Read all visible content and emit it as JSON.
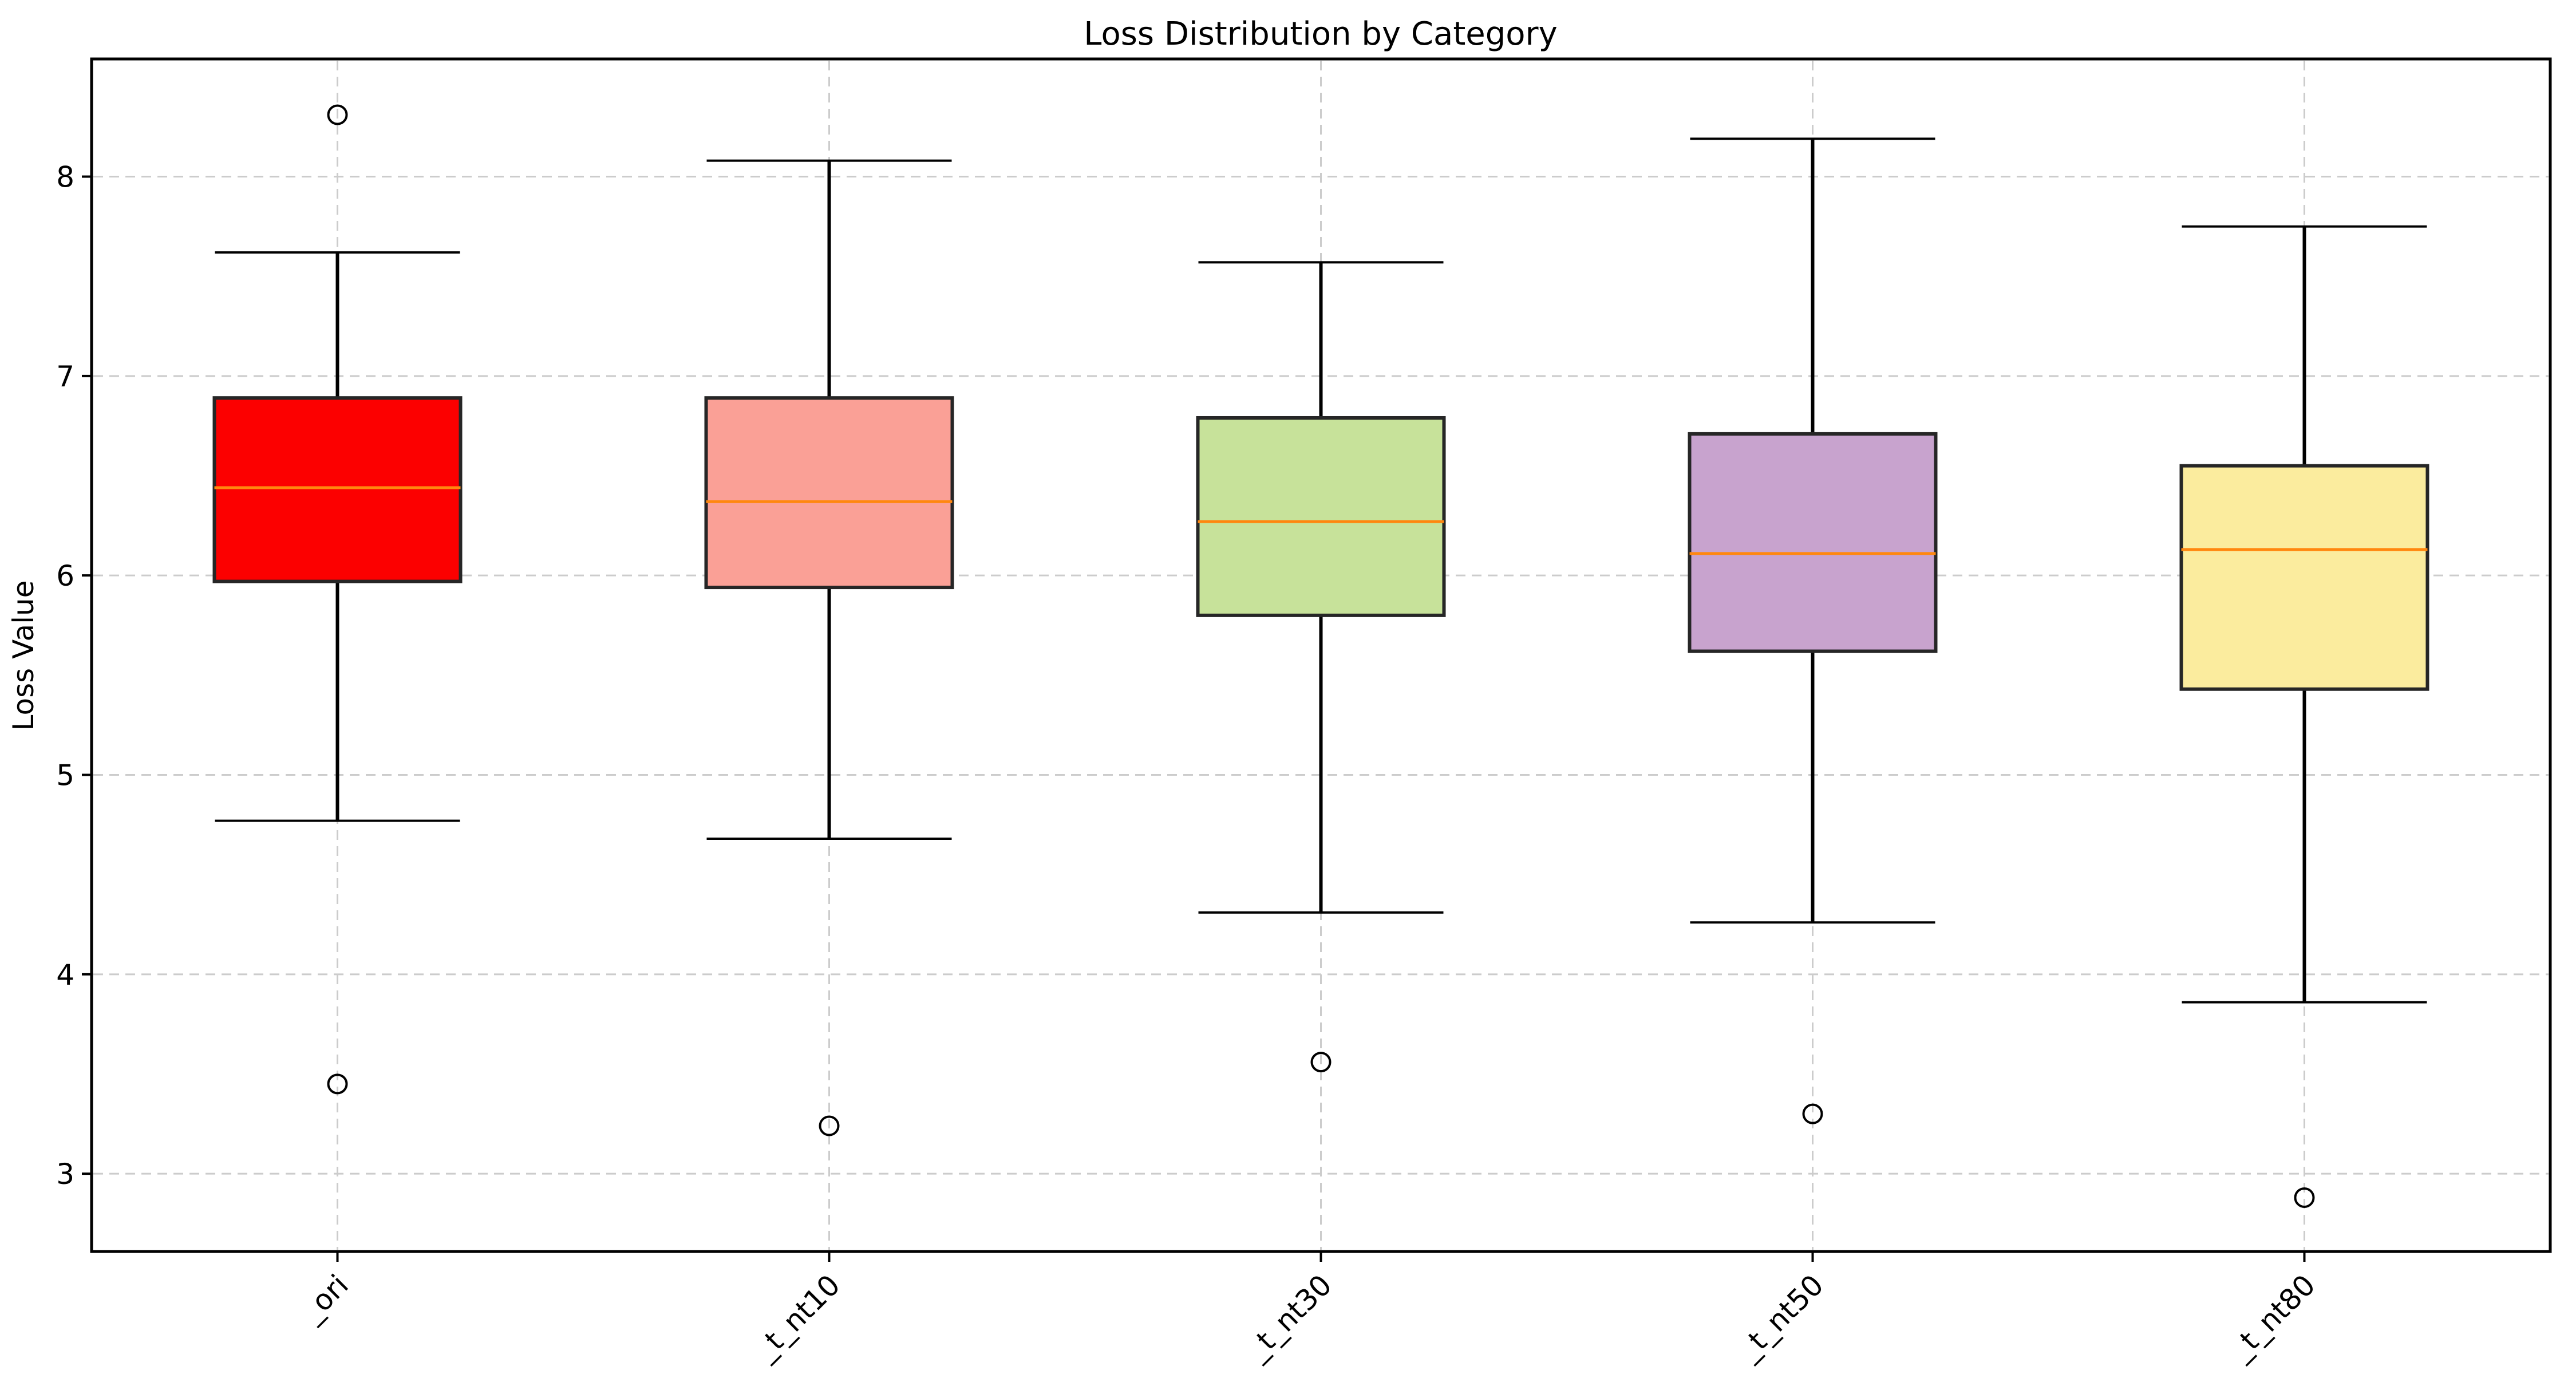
{
  "chart_data": {
    "type": "box",
    "title": "Loss Distribution by Category",
    "xlabel": "",
    "ylabel": "Loss Value",
    "categories": [
      "_ori",
      "_t_nt10",
      "_t_nt30",
      "_t_nt50",
      "_t_nt80"
    ],
    "y_ticks": [
      3,
      4,
      5,
      6,
      7,
      8
    ],
    "ylim": [
      2.61,
      8.59
    ],
    "grid": "dashed, both axes",
    "legend": "none",
    "series": [
      {
        "name": "_ori",
        "whisker_low": 4.77,
        "q1": 5.97,
        "median": 6.44,
        "q3": 6.89,
        "whisker_high": 7.62,
        "outliers": [
          8.31,
          3.45
        ],
        "fill": "#fc0000"
      },
      {
        "name": "_t_nt10",
        "whisker_low": 4.68,
        "q1": 5.94,
        "median": 6.37,
        "q3": 6.89,
        "whisker_high": 8.08,
        "outliers": [
          3.24
        ],
        "fill": "#faa096"
      },
      {
        "name": "_t_nt30",
        "whisker_low": 4.31,
        "q1": 5.8,
        "median": 6.27,
        "q3": 6.79,
        "whisker_high": 7.57,
        "outliers": [
          3.56
        ],
        "fill": "#c7e29a"
      },
      {
        "name": "_t_nt50",
        "whisker_low": 4.26,
        "q1": 5.62,
        "median": 6.11,
        "q3": 6.71,
        "whisker_high": 8.19,
        "outliers": [
          3.3
        ],
        "fill": "#c8a3ce"
      },
      {
        "name": "_t_nt80",
        "whisker_low": 3.86,
        "q1": 5.43,
        "median": 6.13,
        "q3": 6.55,
        "whisker_high": 7.75,
        "outliers": [
          2.88
        ],
        "fill": "#fbec9e"
      }
    ],
    "colors": {
      "median": "#ff870f",
      "box_edge": "#262626",
      "whisker": "#000000",
      "outlier_edge": "#000000",
      "grid": "#cccccc",
      "axis": "#000000",
      "background": "#ffffff"
    }
  }
}
